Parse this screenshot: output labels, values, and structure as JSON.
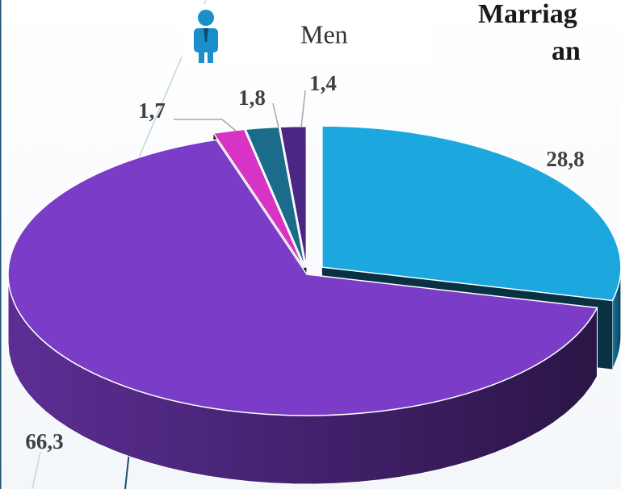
{
  "chart_data": {
    "type": "pie3d",
    "title_lines": [
      "Marriag",
      "an"
    ],
    "legend_title": "Men",
    "categories": [
      null,
      null,
      null,
      null,
      null
    ],
    "values": [
      28.8,
      66.3,
      1.7,
      1.8,
      1.4
    ],
    "value_labels": [
      "28,8",
      "66,3",
      "1,7",
      "1,8",
      "1,4"
    ],
    "colors": [
      "#1ca8de",
      "#7b3dc7",
      "#d733c4",
      "#1b6b8b",
      "#4b2682"
    ]
  }
}
